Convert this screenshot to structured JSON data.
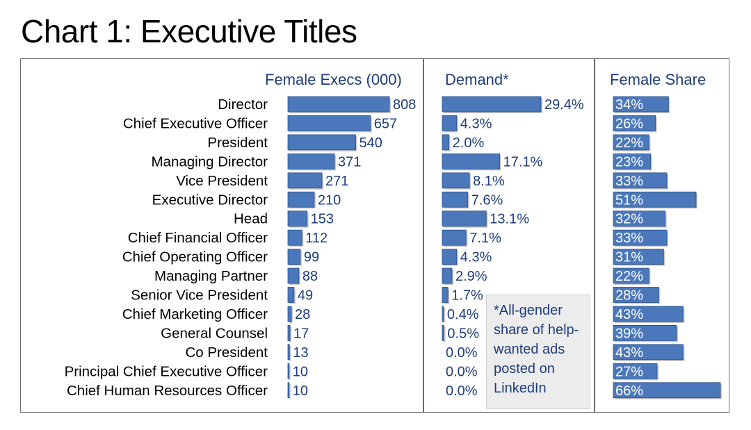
{
  "title": "Chart 1: Executive Titles",
  "headers": {
    "female_execs": "Female Execs (000)",
    "demand": "Demand*",
    "female_share": "Female Share"
  },
  "note": "*All-gender share of help-wanted ads posted on LinkedIn",
  "colors": {
    "bar": "#4a78bb",
    "bar_edge": "#2b4f87",
    "text_blue": "#1e3d7b",
    "note_bg": "#ececec"
  },
  "chart_data": {
    "type": "bar",
    "orientation": "horizontal",
    "categories": [
      "Director",
      "Chief Executive Officer",
      "President",
      "Managing Director",
      "Vice President",
      "Executive Director",
      "Head",
      "Chief Financial Officer",
      "Chief Operating Officer",
      "Managing Partner",
      "Senior Vice President",
      "Chief Marketing Officer",
      "General Counsel",
      "Co President",
      "Principal Chief Executive Officer",
      "Chief Human Resources Officer"
    ],
    "series": [
      {
        "name": "Female Execs (000)",
        "values": [
          808,
          657,
          540,
          371,
          271,
          210,
          153,
          112,
          99,
          88,
          49,
          28,
          17,
          13,
          10,
          10
        ],
        "labels": [
          "808",
          "657",
          "540",
          "371",
          "271",
          "210",
          "153",
          "112",
          "99",
          "88",
          "49",
          "28",
          "17",
          "13",
          "10",
          "10"
        ],
        "xlim": [
          0,
          808
        ]
      },
      {
        "name": "Demand*",
        "values": [
          29.4,
          4.3,
          2.0,
          17.1,
          8.1,
          7.6,
          13.1,
          7.1,
          4.3,
          2.9,
          1.7,
          0.4,
          0.5,
          0.0,
          0.0,
          0.0
        ],
        "labels": [
          "29.4%",
          "4.3%",
          "2.0%",
          "17.1%",
          "8.1%",
          "7.6%",
          "13.1%",
          "7.1%",
          "4.3%",
          "2.9%",
          "1.7%",
          "0.4%",
          "0.5%",
          "0.0%",
          "0.0%",
          "0.0%"
        ],
        "xlim": [
          0,
          29.4
        ]
      },
      {
        "name": "Female Share",
        "values": [
          34,
          26,
          22,
          23,
          33,
          51,
          32,
          33,
          31,
          22,
          28,
          43,
          39,
          43,
          27,
          66
        ],
        "labels": [
          "34%",
          "26%",
          "22%",
          "23%",
          "33%",
          "51%",
          "32%",
          "33%",
          "31%",
          "22%",
          "28%",
          "43%",
          "39%",
          "43%",
          "27%",
          "66%"
        ],
        "xlim": [
          0,
          66
        ]
      }
    ],
    "grid": false,
    "legend": "none"
  }
}
